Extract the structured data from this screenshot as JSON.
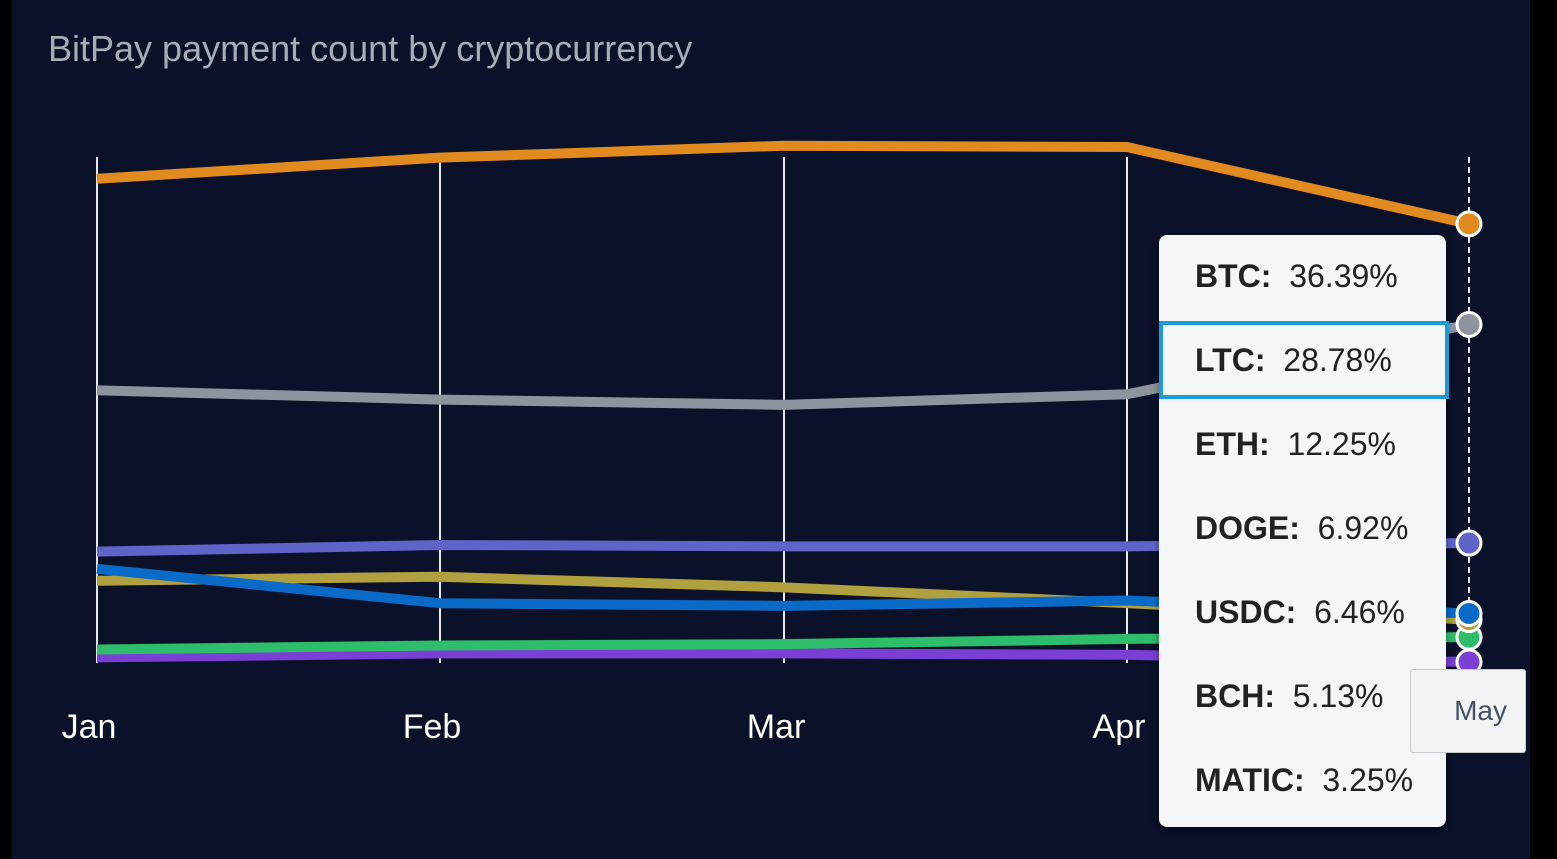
{
  "chart_data": {
    "type": "line",
    "title": "BitPay payment count by cryptocurrency",
    "categories": [
      "Jan",
      "Feb",
      "Mar",
      "Apr",
      "May"
    ],
    "ylim": [
      0,
      45
    ],
    "grid": "vertical",
    "series": [
      {
        "name": "BTC",
        "color": "#e08a20",
        "values": [
          39.8,
          41.4,
          42.3,
          42.2,
          36.39
        ]
      },
      {
        "name": "LTC",
        "color": "#8e949e",
        "values": [
          23.8,
          23.1,
          22.7,
          23.5,
          28.78
        ]
      },
      {
        "name": "ETH",
        "color": "#5f64c8",
        "values": [
          11.6,
          12.1,
          12.0,
          12.0,
          12.25
        ]
      },
      {
        "name": "DOGE",
        "color": "#0a6ac8",
        "values": [
          10.3,
          7.7,
          7.5,
          7.9,
          6.92
        ]
      },
      {
        "name": "USDC",
        "color": "#b0a040",
        "values": [
          9.4,
          9.7,
          8.9,
          7.7,
          6.46
        ]
      },
      {
        "name": "BCH",
        "color": "#2ebd6a",
        "values": [
          4.2,
          4.5,
          4.6,
          5.0,
          5.13
        ]
      },
      {
        "name": "MATIC",
        "color": "#7b3fd6",
        "values": [
          3.6,
          3.9,
          3.9,
          3.8,
          3.25
        ]
      }
    ]
  },
  "tooltip": {
    "category": "May",
    "active_series": "LTC",
    "rows": [
      {
        "symbol": "BTC:",
        "value": "36.39%"
      },
      {
        "symbol": "LTC:",
        "value": "28.78%"
      },
      {
        "symbol": "ETH:",
        "value": "12.25%"
      },
      {
        "symbol": "DOGE:",
        "value": "6.92%"
      },
      {
        "symbol": "USDC:",
        "value": "6.46%"
      },
      {
        "symbol": "BCH:",
        "value": "5.13%"
      },
      {
        "symbol": "MATIC:",
        "value": "3.25%"
      }
    ]
  },
  "colors": {
    "background": "#0a1128",
    "gridline": "#e6e8ec",
    "tooltip_highlight": "#1a9ad6"
  }
}
